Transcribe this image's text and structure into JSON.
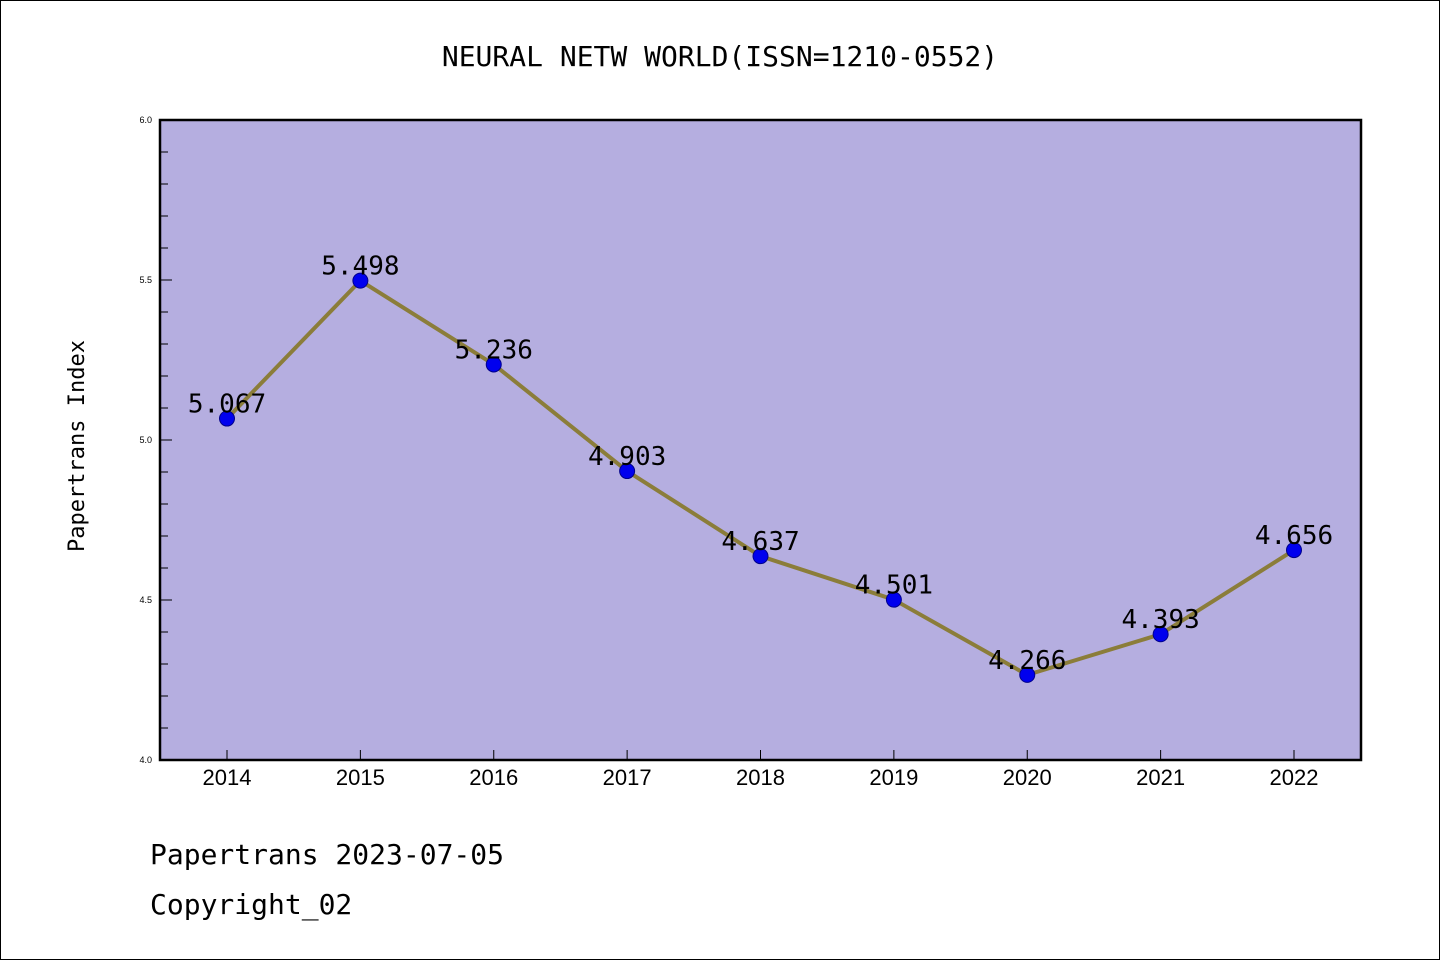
{
  "chart_data": {
    "type": "line",
    "title": "NEURAL NETW WORLD(ISSN=1210-0552)",
    "xlabel": "",
    "ylabel": "Papertrans Index",
    "categories": [
      "2014",
      "2015",
      "2016",
      "2017",
      "2018",
      "2019",
      "2020",
      "2021",
      "2022"
    ],
    "values": [
      5.067,
      5.498,
      5.236,
      4.903,
      4.637,
      4.501,
      4.266,
      4.393,
      4.656
    ],
    "data_labels": [
      "5.067",
      "5.498",
      "5.236",
      "4.903",
      "4.637",
      "4.501",
      "4.266",
      "4.393",
      "4.656"
    ],
    "ylim": [
      4.0,
      6.0
    ],
    "yticks": [
      "4.0",
      "4.5",
      "5.0",
      "5.5",
      "6.0"
    ],
    "grid": false,
    "colors": {
      "plot_background": "#b5aee0",
      "line": "#8b7d3a",
      "marker": "#0000ee"
    }
  },
  "footer": {
    "line1": "Papertrans 2023-07-05",
    "line2": "Copyright_02"
  }
}
